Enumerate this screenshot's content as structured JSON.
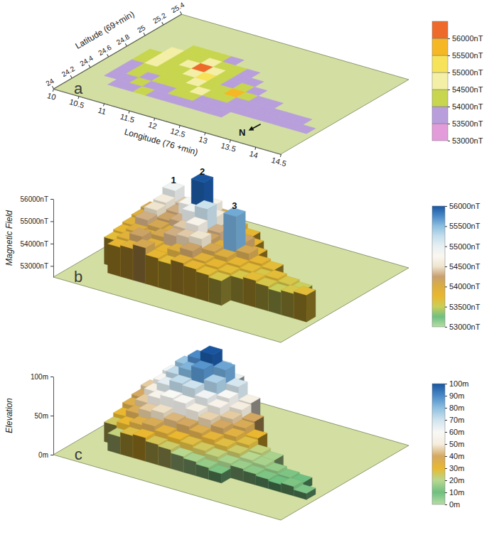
{
  "chart_data": [
    {
      "type": "map",
      "panel": "a",
      "xlabel": "Longitude (76 +min)",
      "ylabel": "Latitude (69+min)",
      "xlim": [
        10,
        14.5
      ],
      "ylim": [
        24,
        25.4
      ],
      "xticks": [
        10,
        10.5,
        11,
        11.5,
        12,
        12.5,
        13,
        13.5,
        14,
        14.5
      ],
      "yticks": [
        24,
        24.2,
        24.4,
        24.6,
        24.8,
        25,
        25.2,
        25.4
      ],
      "x": [
        10.5,
        10.75,
        11,
        11.25,
        11.5,
        11.75,
        12,
        12.25,
        12.5,
        12.75,
        13,
        13.25,
        13.5,
        13.75,
        14,
        14.25
      ],
      "y": [
        24.3,
        24.4,
        24.5,
        24.6,
        24.7,
        24.8,
        24.9,
        25
      ],
      "values": [
        [
          null,
          53800,
          53900,
          54100,
          53800,
          53700,
          53900,
          53800,
          53700,
          53600,
          null,
          null,
          null,
          null,
          null,
          null
        ],
        [
          53700,
          53900,
          54200,
          53900,
          53800,
          54000,
          54200,
          53900,
          53800,
          53700,
          53600,
          53700,
          53600,
          53500,
          53600,
          53700
        ],
        [
          53800,
          54000,
          53900,
          54100,
          54300,
          54400,
          54500,
          54100,
          54000,
          53800,
          53700,
          53600,
          53700,
          53600,
          53500,
          null
        ],
        [
          53900,
          54300,
          54100,
          54000,
          54400,
          54700,
          54200,
          54000,
          55600,
          54100,
          53800,
          53700,
          null,
          null,
          null,
          null
        ],
        [
          54000,
          54500,
          54200,
          54300,
          54900,
          55200,
          54300,
          53900,
          54200,
          53800,
          null,
          null,
          null,
          null,
          null,
          null
        ],
        [
          54100,
          54600,
          54300,
          54800,
          56000,
          54600,
          54100,
          53900,
          53800,
          null,
          null,
          null,
          null,
          null,
          null,
          null
        ],
        [
          null,
          54900,
          54400,
          54200,
          54700,
          54300,
          54000,
          53800,
          null,
          null,
          null,
          null,
          null,
          null,
          null,
          null
        ],
        [
          null,
          null,
          54100,
          54300,
          54000,
          53900,
          null,
          null,
          null,
          null,
          null,
          null,
          null,
          null,
          null,
          null
        ]
      ],
      "colorbar": {
        "levels": [
          53000,
          53500,
          54000,
          54500,
          55000,
          55500,
          56000,
          56500
        ],
        "colors": [
          "#e39cda",
          "#b89fdc",
          "#c7d64e",
          "#f3efa6",
          "#f6e35a",
          "#f6b724",
          "#ee6a2a"
        ],
        "ticks": [
          {
            "value": 53000,
            "label": "53000nT"
          },
          {
            "value": 53500,
            "label": "53500nT"
          },
          {
            "value": 54000,
            "label": "54000nT"
          },
          {
            "value": 54500,
            "label": "54500nT"
          },
          {
            "value": 55000,
            "label": "55000nT"
          },
          {
            "value": 55500,
            "label": "55500nT"
          },
          {
            "value": 56000,
            "label": "56000nT"
          }
        ]
      },
      "annotations": [
        {
          "text": "N",
          "x": 13.5,
          "y": 24.13
        }
      ]
    },
    {
      "type": "surface",
      "panel": "b",
      "zlabel": "Magnetic Field",
      "xlim": [
        10,
        14.5
      ],
      "ylim": [
        24,
        25.4
      ],
      "zlim": [
        52500,
        56000
      ],
      "zticks": [
        {
          "value": 53000,
          "label": "53000nT"
        },
        {
          "value": 54000,
          "label": "54000nT"
        },
        {
          "value": 55000,
          "label": "55000nT"
        },
        {
          "value": 56000,
          "label": "56000nT"
        }
      ],
      "x": [
        10.5,
        10.75,
        11,
        11.25,
        11.5,
        11.75,
        12,
        12.25,
        12.5,
        12.75,
        13,
        13.25,
        13.5,
        13.75,
        14,
        14.25
      ],
      "y": [
        24.3,
        24.4,
        24.5,
        24.6,
        24.7,
        24.8,
        24.9,
        25
      ],
      "values": [
        [
          null,
          53800,
          53900,
          54100,
          53800,
          53700,
          53900,
          53800,
          53700,
          53600,
          null,
          null,
          null,
          null,
          null,
          null
        ],
        [
          53700,
          53900,
          54200,
          53900,
          53800,
          54000,
          54200,
          53900,
          53800,
          53700,
          53600,
          53700,
          53600,
          53500,
          53600,
          53700
        ],
        [
          53800,
          54000,
          53900,
          54100,
          54300,
          54400,
          54500,
          54100,
          54000,
          53800,
          53700,
          53600,
          53700,
          53600,
          53500,
          null
        ],
        [
          53900,
          54300,
          54100,
          54000,
          54400,
          54700,
          54200,
          54000,
          55600,
          54100,
          53800,
          53700,
          null,
          null,
          null,
          null
        ],
        [
          54000,
          54500,
          54200,
          54300,
          54900,
          55200,
          54300,
          53900,
          54200,
          53800,
          null,
          null,
          null,
          null,
          null,
          null
        ],
        [
          54100,
          54600,
          54300,
          54800,
          56000,
          54600,
          54100,
          53900,
          53800,
          null,
          null,
          null,
          null,
          null,
          null,
          null
        ],
        [
          null,
          54900,
          54400,
          54200,
          54700,
          54300,
          54000,
          53800,
          null,
          null,
          null,
          null,
          null,
          null,
          null,
          null
        ],
        [
          null,
          null,
          54100,
          54300,
          54000,
          53900,
          null,
          null,
          null,
          null,
          null,
          null,
          null,
          null,
          null,
          null
        ]
      ],
      "colorbar": {
        "range": [
          53000,
          56000
        ],
        "colors": [
          "#b5dea5",
          "#6fbf80",
          "#c9cf5a",
          "#e9b830",
          "#dcae40",
          "#c8a070",
          "#efe5cf",
          "#faf7f0",
          "#e8f0f3",
          "#c4dfec",
          "#8dbfe0",
          "#4a8ac8",
          "#1a56a0"
        ],
        "ticks": [
          {
            "value": 53000,
            "label": "53000nT"
          },
          {
            "value": 53500,
            "label": "53500nT"
          },
          {
            "value": 54000,
            "label": "54000nT"
          },
          {
            "value": 54500,
            "label": "54500nT"
          },
          {
            "value": 55000,
            "label": "55000nT"
          },
          {
            "value": 55500,
            "label": "55500nT"
          },
          {
            "value": 56000,
            "label": "56000nT"
          }
        ]
      },
      "annotations": [
        {
          "text": "1",
          "x": 10.75,
          "y": 24.9
        },
        {
          "text": "2",
          "x": 11.5,
          "y": 24.8
        },
        {
          "text": "3",
          "x": 12.5,
          "y": 24.6
        }
      ]
    },
    {
      "type": "surface",
      "panel": "c",
      "zlabel": "Elevation",
      "xlim": [
        10,
        14.5
      ],
      "ylim": [
        24,
        25.4
      ],
      "zlim": [
        0,
        100
      ],
      "zticks": [
        {
          "value": 0,
          "label": "0m"
        },
        {
          "value": 50,
          "label": "50m"
        },
        {
          "value": 100,
          "label": "100m"
        }
      ],
      "x": [
        10.5,
        10.75,
        11,
        11.25,
        11.5,
        11.75,
        12,
        12.25,
        12.5,
        12.75,
        13,
        13.25,
        13.5,
        13.75,
        14,
        14.25
      ],
      "y": [
        24.3,
        24.4,
        24.5,
        24.6,
        24.7,
        24.8,
        24.9,
        25
      ],
      "values": [
        [
          null,
          22,
          28,
          30,
          26,
          24,
          20,
          18,
          15,
          12,
          null,
          null,
          null,
          null,
          null,
          null
        ],
        [
          25,
          30,
          35,
          38,
          33,
          30,
          28,
          25,
          22,
          18,
          16,
          14,
          12,
          10,
          12,
          8
        ],
        [
          30,
          38,
          45,
          48,
          42,
          40,
          36,
          32,
          28,
          24,
          20,
          18,
          15,
          12,
          10,
          null
        ],
        [
          36,
          45,
          55,
          60,
          58,
          52,
          46,
          40,
          34,
          28,
          22,
          18,
          null,
          null,
          null,
          null
        ],
        [
          40,
          52,
          65,
          72,
          70,
          62,
          55,
          45,
          38,
          30,
          null,
          null,
          null,
          null,
          null,
          null
        ],
        [
          45,
          58,
          72,
          82,
          88,
          75,
          60,
          50,
          40,
          null,
          null,
          null,
          null,
          null,
          null,
          null
        ],
        [
          null,
          62,
          78,
          90,
          100,
          85,
          68,
          52,
          null,
          null,
          null,
          null,
          null,
          null,
          null,
          null
        ],
        [
          null,
          null,
          70,
          80,
          76,
          64,
          null,
          null,
          null,
          null,
          null,
          null,
          null,
          null,
          null,
          null
        ]
      ],
      "colorbar": {
        "range": [
          0,
          100
        ],
        "colors": [
          "#b5dea5",
          "#6fbf80",
          "#b8d890",
          "#e9b830",
          "#d4a860",
          "#f5eee0",
          "#f8f8f5",
          "#cfe3ee",
          "#8dbfe0",
          "#4a8ac8",
          "#1a56a0"
        ],
        "ticks": [
          {
            "value": 0,
            "label": "0m"
          },
          {
            "value": 10,
            "label": "10m"
          },
          {
            "value": 20,
            "label": "20m"
          },
          {
            "value": 30,
            "label": "30m"
          },
          {
            "value": 40,
            "label": "40m"
          },
          {
            "value": 50,
            "label": "50m"
          },
          {
            "value": 60,
            "label": "60m"
          },
          {
            "value": 70,
            "label": "70m"
          },
          {
            "value": 80,
            "label": "80m"
          },
          {
            "value": 90,
            "label": "90m"
          },
          {
            "value": 100,
            "label": "100m"
          }
        ]
      }
    }
  ]
}
